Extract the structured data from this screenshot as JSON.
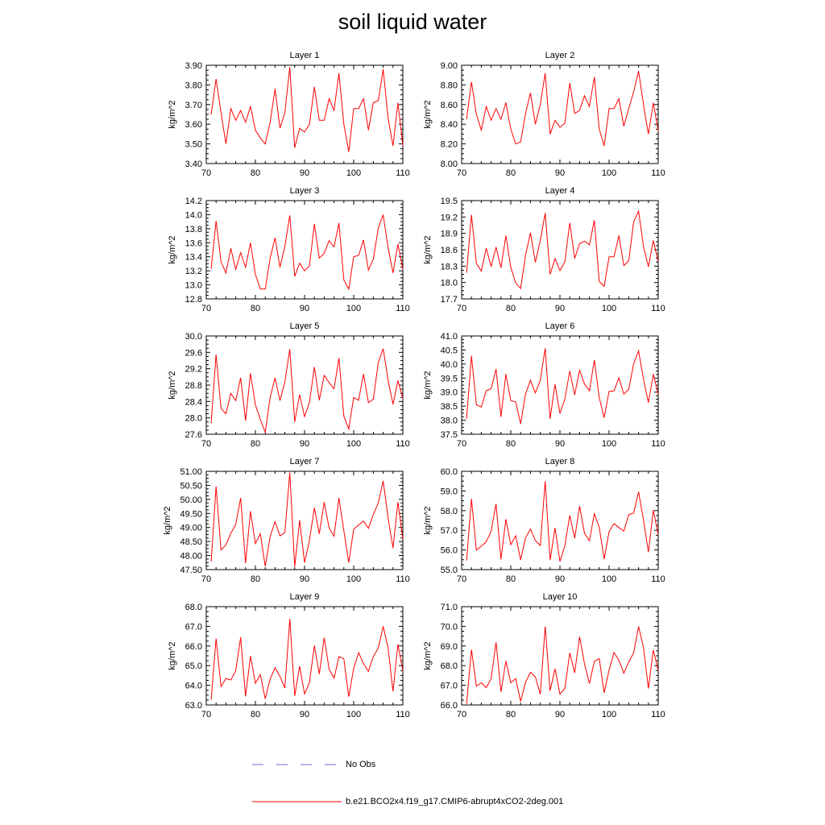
{
  "title": "soil liquid water",
  "legend": {
    "obs_label": "No Obs",
    "obs_color": "#6b6bd6",
    "model_label": "b.e21.BCO2x4.f19_g17.CMIP6-abrupt4xCO2-2deg.001",
    "model_color": "#ff0000"
  },
  "chart_data": [
    {
      "type": "line",
      "title": "Layer 1",
      "ylabel": "kg/m^2",
      "xlim": [
        70,
        110
      ],
      "ylim": [
        3.4,
        3.9
      ],
      "xticks": [
        70,
        80,
        90,
        100,
        110
      ],
      "yticks": [
        "3.40",
        "3.50",
        "3.60",
        "3.70",
        "3.80",
        "3.90"
      ],
      "series": [
        {
          "color": "#ff0000",
          "x": [
            71,
            72,
            73,
            74,
            75,
            76,
            77,
            78,
            79,
            80,
            81,
            82,
            83,
            84,
            85,
            86,
            87,
            88,
            89,
            90,
            91,
            92,
            93,
            94,
            95,
            96,
            97,
            98,
            99,
            100,
            101,
            102,
            103,
            104,
            105,
            106,
            107,
            108,
            109,
            110
          ],
          "y": [
            3.65,
            3.83,
            3.66,
            3.5,
            3.68,
            3.62,
            3.67,
            3.61,
            3.69,
            3.57,
            3.53,
            3.5,
            3.61,
            3.78,
            3.58,
            3.66,
            3.89,
            3.48,
            3.58,
            3.56,
            3.6,
            3.79,
            3.62,
            3.62,
            3.73,
            3.67,
            3.86,
            3.6,
            3.46,
            3.68,
            3.68,
            3.73,
            3.57,
            3.71,
            3.72,
            3.88,
            3.63,
            3.49,
            3.71,
            3.49
          ]
        }
      ]
    },
    {
      "type": "line",
      "title": "Layer 2",
      "ylabel": "kg/m^2",
      "xlim": [
        70,
        110
      ],
      "ylim": [
        8.0,
        9.0
      ],
      "xticks": [
        70,
        80,
        90,
        100,
        110
      ],
      "yticks": [
        "8.00",
        "8.20",
        "8.40",
        "8.60",
        "8.80",
        "9.00"
      ],
      "series": [
        {
          "color": "#ff0000",
          "x": [
            71,
            72,
            73,
            74,
            75,
            76,
            77,
            78,
            79,
            80,
            81,
            82,
            83,
            84,
            85,
            86,
            87,
            88,
            89,
            90,
            91,
            92,
            93,
            94,
            95,
            96,
            97,
            98,
            99,
            100,
            101,
            102,
            103,
            104,
            105,
            106,
            107,
            108,
            109,
            110
          ],
          "y": [
            8.45,
            8.83,
            8.5,
            8.34,
            8.58,
            8.44,
            8.56,
            8.45,
            8.62,
            8.35,
            8.2,
            8.22,
            8.51,
            8.72,
            8.4,
            8.6,
            8.92,
            8.3,
            8.44,
            8.37,
            8.41,
            8.82,
            8.51,
            8.54,
            8.69,
            8.58,
            8.88,
            8.35,
            8.18,
            8.56,
            8.56,
            8.66,
            8.38,
            8.56,
            8.73,
            8.94,
            8.6,
            8.3,
            8.62,
            8.33
          ]
        }
      ]
    },
    {
      "type": "line",
      "title": "Layer 3",
      "ylabel": "kg/m^2",
      "xlim": [
        70,
        110
      ],
      "ylim": [
        12.8,
        14.2
      ],
      "xticks": [
        70,
        80,
        90,
        100,
        110
      ],
      "yticks": [
        "12.8",
        "13.0",
        "13.2",
        "13.4",
        "13.6",
        "13.8",
        "14.0",
        "14.2"
      ],
      "series": [
        {
          "color": "#ff0000",
          "x": [
            71,
            72,
            73,
            74,
            75,
            76,
            77,
            78,
            79,
            80,
            81,
            82,
            83,
            84,
            85,
            86,
            87,
            88,
            89,
            90,
            91,
            92,
            93,
            94,
            95,
            96,
            97,
            98,
            99,
            100,
            101,
            102,
            103,
            104,
            105,
            106,
            107,
            108,
            109,
            110
          ],
          "y": [
            13.23,
            13.91,
            13.33,
            13.17,
            13.52,
            13.22,
            13.46,
            13.25,
            13.6,
            13.15,
            12.94,
            12.94,
            13.38,
            13.67,
            13.25,
            13.55,
            13.99,
            13.12,
            13.31,
            13.2,
            13.27,
            13.87,
            13.38,
            13.45,
            13.63,
            13.54,
            13.88,
            13.07,
            12.94,
            13.4,
            13.42,
            13.64,
            13.21,
            13.37,
            13.81,
            14.0,
            13.53,
            13.17,
            13.58,
            13.22
          ]
        }
      ]
    },
    {
      "type": "line",
      "title": "Layer 4",
      "ylabel": "kg/m^2",
      "xlim": [
        70,
        110
      ],
      "ylim": [
        17.7,
        19.5
      ],
      "xticks": [
        70,
        80,
        90,
        100,
        110
      ],
      "yticks": [
        "17.7",
        "18.0",
        "18.3",
        "18.6",
        "18.9",
        "19.2",
        "19.5"
      ],
      "series": [
        {
          "color": "#ff0000",
          "x": [
            71,
            72,
            73,
            74,
            75,
            76,
            77,
            78,
            79,
            80,
            81,
            82,
            83,
            84,
            85,
            86,
            87,
            88,
            89,
            90,
            91,
            92,
            93,
            94,
            95,
            96,
            97,
            98,
            99,
            100,
            101,
            102,
            103,
            104,
            105,
            106,
            107,
            108,
            109,
            110
          ],
          "y": [
            18.18,
            19.24,
            18.35,
            18.21,
            18.63,
            18.29,
            18.65,
            18.27,
            18.86,
            18.28,
            17.99,
            17.89,
            18.5,
            18.91,
            18.37,
            18.77,
            19.27,
            18.15,
            18.44,
            18.22,
            18.38,
            19.09,
            18.44,
            18.71,
            18.76,
            18.69,
            19.14,
            18.02,
            17.93,
            18.47,
            18.47,
            18.86,
            18.31,
            18.4,
            19.11,
            19.31,
            18.66,
            18.29,
            18.77,
            18.38
          ]
        }
      ]
    },
    {
      "type": "line",
      "title": "Layer 5",
      "ylabel": "kg/m^2",
      "xlim": [
        70,
        110
      ],
      "ylim": [
        27.6,
        30.0
      ],
      "xticks": [
        70,
        80,
        90,
        100,
        110
      ],
      "yticks": [
        "27.6",
        "28.0",
        "28.4",
        "28.8",
        "29.2",
        "29.6",
        "30.0"
      ],
      "series": [
        {
          "color": "#ff0000",
          "x": [
            71,
            72,
            73,
            74,
            75,
            76,
            77,
            78,
            79,
            80,
            81,
            82,
            83,
            84,
            85,
            86,
            87,
            88,
            89,
            90,
            91,
            92,
            93,
            94,
            95,
            96,
            97,
            98,
            99,
            100,
            101,
            102,
            103,
            104,
            105,
            106,
            107,
            108,
            109,
            110
          ],
          "y": [
            27.87,
            29.55,
            28.23,
            28.1,
            28.6,
            28.42,
            28.98,
            27.93,
            29.09,
            28.32,
            27.96,
            27.65,
            28.5,
            28.98,
            28.42,
            28.88,
            29.68,
            27.9,
            28.57,
            28.03,
            28.38,
            29.24,
            28.43,
            29.04,
            28.86,
            28.71,
            29.46,
            28.04,
            27.73,
            28.5,
            28.43,
            29.07,
            28.37,
            28.46,
            29.35,
            29.69,
            28.92,
            28.33,
            28.91,
            28.48
          ]
        }
      ]
    },
    {
      "type": "line",
      "title": "Layer 6",
      "ylabel": "kg/m^2",
      "xlim": [
        70,
        110
      ],
      "ylim": [
        37.5,
        41.0
      ],
      "xticks": [
        70,
        80,
        90,
        100,
        110
      ],
      "yticks": [
        "37.5",
        "38.0",
        "38.5",
        "39.0",
        "39.5",
        "40.0",
        "40.5",
        "41.0"
      ],
      "series": [
        {
          "color": "#ff0000",
          "x": [
            71,
            72,
            73,
            74,
            75,
            76,
            77,
            78,
            79,
            80,
            81,
            82,
            83,
            84,
            85,
            86,
            87,
            88,
            89,
            90,
            91,
            92,
            93,
            94,
            95,
            96,
            97,
            98,
            99,
            100,
            101,
            102,
            103,
            104,
            105,
            106,
            107,
            108,
            109,
            110
          ],
          "y": [
            38.05,
            40.29,
            38.55,
            38.47,
            39.05,
            39.12,
            39.82,
            38.12,
            39.64,
            38.7,
            38.65,
            37.87,
            38.94,
            39.42,
            38.97,
            39.42,
            40.56,
            38.05,
            39.28,
            38.24,
            38.75,
            39.75,
            38.9,
            39.78,
            39.29,
            39.05,
            40.14,
            38.8,
            38.09,
            39.03,
            39.04,
            39.51,
            38.93,
            39.1,
            40.01,
            40.47,
            39.46,
            38.63,
            39.64,
            38.92
          ]
        }
      ]
    },
    {
      "type": "line",
      "title": "Layer 7",
      "ylabel": "kg/m^2",
      "xlim": [
        70,
        110
      ],
      "ylim": [
        47.5,
        51.0
      ],
      "xticks": [
        70,
        80,
        90,
        100,
        110
      ],
      "yticks": [
        "47.50",
        "48.00",
        "48.50",
        "49.00",
        "49.50",
        "50.00",
        "50.50",
        "51.00"
      ],
      "series": [
        {
          "color": "#ff0000",
          "x": [
            71,
            72,
            73,
            74,
            75,
            76,
            77,
            78,
            79,
            80,
            81,
            82,
            83,
            84,
            85,
            86,
            87,
            88,
            89,
            90,
            91,
            92,
            93,
            94,
            95,
            96,
            97,
            98,
            99,
            100,
            101,
            102,
            103,
            104,
            105,
            106,
            107,
            108,
            109,
            110
          ],
          "y": [
            47.78,
            50.46,
            48.2,
            48.38,
            48.8,
            49.1,
            50.05,
            47.73,
            49.58,
            48.43,
            48.78,
            47.62,
            48.67,
            49.21,
            48.7,
            48.82,
            50.96,
            47.6,
            49.26,
            47.75,
            48.54,
            49.7,
            48.77,
            49.9,
            48.98,
            48.69,
            50.05,
            48.88,
            47.75,
            48.94,
            49.09,
            49.23,
            48.97,
            49.47,
            49.87,
            50.66,
            49.34,
            48.27,
            49.9,
            48.59
          ]
        }
      ]
    },
    {
      "type": "line",
      "title": "Layer 8",
      "ylabel": "kg/m^2",
      "xlim": [
        70,
        110
      ],
      "ylim": [
        55.0,
        60.0
      ],
      "xticks": [
        70,
        80,
        90,
        100,
        110
      ],
      "yticks": [
        "55.0",
        "56.0",
        "57.0",
        "58.0",
        "59.0",
        "60.0"
      ],
      "series": [
        {
          "color": "#ff0000",
          "x": [
            71,
            72,
            73,
            74,
            75,
            76,
            77,
            78,
            79,
            80,
            81,
            82,
            83,
            84,
            85,
            86,
            87,
            88,
            89,
            90,
            91,
            92,
            93,
            94,
            95,
            96,
            97,
            98,
            99,
            100,
            101,
            102,
            103,
            104,
            105,
            106,
            107,
            108,
            109,
            110
          ],
          "y": [
            55.46,
            58.6,
            55.99,
            56.19,
            56.42,
            56.95,
            58.35,
            55.52,
            57.56,
            56.27,
            56.72,
            55.49,
            56.62,
            57.06,
            56.48,
            56.23,
            59.49,
            55.48,
            57.12,
            55.42,
            56.21,
            57.76,
            56.6,
            58.23,
            56.85,
            56.47,
            57.85,
            57.15,
            55.53,
            56.93,
            57.34,
            57.14,
            56.96,
            57.79,
            57.88,
            58.95,
            57.53,
            55.89,
            58.03,
            56.78
          ]
        }
      ]
    },
    {
      "type": "line",
      "title": "Layer 9",
      "ylabel": "kg/m^2",
      "xlim": [
        70,
        110
      ],
      "ylim": [
        63.0,
        68.0
      ],
      "xticks": [
        70,
        80,
        90,
        100,
        110
      ],
      "yticks": [
        "63.0",
        "64.0",
        "65.0",
        "66.0",
        "67.0",
        "68.0"
      ],
      "series": [
        {
          "color": "#ff0000",
          "x": [
            71,
            72,
            73,
            74,
            75,
            76,
            77,
            78,
            79,
            80,
            81,
            82,
            83,
            84,
            85,
            86,
            87,
            88,
            89,
            90,
            91,
            92,
            93,
            94,
            95,
            96,
            97,
            98,
            99,
            100,
            101,
            102,
            103,
            104,
            105,
            106,
            107,
            108,
            109,
            110
          ],
          "y": [
            63.26,
            66.38,
            63.94,
            64.35,
            64.27,
            64.75,
            66.44,
            63.44,
            65.49,
            64.1,
            64.55,
            63.31,
            64.32,
            64.89,
            64.45,
            63.86,
            67.38,
            63.46,
            64.97,
            63.56,
            64.14,
            66.02,
            64.57,
            66.42,
            64.82,
            64.36,
            65.46,
            65.35,
            63.42,
            64.86,
            65.66,
            65.09,
            64.71,
            65.47,
            65.89,
            67.0,
            65.91,
            63.69,
            66.09,
            64.75
          ]
        }
      ]
    },
    {
      "type": "line",
      "title": "Layer 10",
      "ylabel": "kg/m^2",
      "xlim": [
        70,
        110
      ],
      "ylim": [
        66.0,
        71.0
      ],
      "xticks": [
        70,
        80,
        90,
        100,
        110
      ],
      "yticks": [
        "66.0",
        "67.0",
        "68.0",
        "69.0",
        "70.0",
        "71.0"
      ],
      "series": [
        {
          "color": "#ff0000",
          "x": [
            71,
            72,
            73,
            74,
            75,
            76,
            77,
            78,
            79,
            80,
            81,
            82,
            83,
            84,
            85,
            86,
            87,
            88,
            89,
            90,
            91,
            92,
            93,
            94,
            95,
            96,
            97,
            98,
            99,
            100,
            101,
            102,
            103,
            104,
            105,
            106,
            107,
            108,
            109,
            110
          ],
          "y": [
            66.05,
            68.81,
            66.96,
            67.13,
            66.88,
            67.33,
            69.19,
            66.67,
            68.23,
            67.13,
            67.34,
            66.18,
            67.15,
            67.66,
            67.43,
            66.54,
            69.99,
            66.72,
            67.84,
            66.55,
            66.84,
            68.65,
            67.63,
            69.47,
            68.09,
            67.09,
            68.22,
            68.36,
            66.62,
            67.78,
            68.67,
            68.27,
            67.61,
            68.19,
            68.65,
            69.99,
            68.94,
            66.84,
            68.79,
            67.75
          ]
        }
      ]
    }
  ]
}
